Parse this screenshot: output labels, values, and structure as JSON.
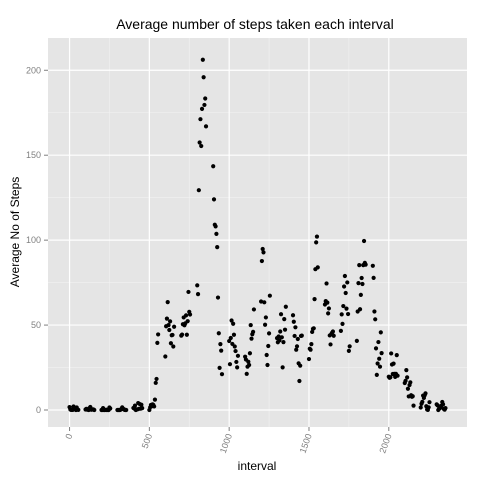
{
  "chart_data": {
    "type": "scatter",
    "title": "Average number of steps taken each interval",
    "xlabel": "interval",
    "ylabel": "Average No of Steps",
    "xlim": [
      -135,
      2490
    ],
    "ylim": [
      -10,
      219
    ],
    "xticks": [
      0,
      500,
      1000,
      1500,
      2000
    ],
    "yticks": [
      0,
      50,
      100,
      150,
      200
    ],
    "grid": true,
    "colors": {
      "panel": "#e5e5e5",
      "grid_major": "#ffffff",
      "grid_minor": "#f2f2f2",
      "point": "#000000",
      "tick_text": "#7f7f7f"
    },
    "series": [
      {
        "points": [
          [
            0,
            1.7
          ],
          [
            5,
            0.3
          ],
          [
            10,
            0.1
          ],
          [
            15,
            0.2
          ],
          [
            20,
            0.1
          ],
          [
            25,
            2.1
          ],
          [
            30,
            0.5
          ],
          [
            35,
            0.9
          ],
          [
            40,
            0
          ],
          [
            45,
            1.5
          ],
          [
            50,
            0.3
          ],
          [
            55,
            0.1
          ],
          [
            100,
            0.3
          ],
          [
            105,
            0.7
          ],
          [
            110,
            0.2
          ],
          [
            115,
            0.3
          ],
          [
            120,
            0
          ],
          [
            125,
            1.1
          ],
          [
            130,
            1.8
          ],
          [
            135,
            0.2
          ],
          [
            140,
            0.2
          ],
          [
            145,
            0.4
          ],
          [
            150,
            0.3
          ],
          [
            155,
            0
          ],
          [
            200,
            0
          ],
          [
            205,
            0
          ],
          [
            210,
            1.1
          ],
          [
            215,
            0
          ],
          [
            220,
            0
          ],
          [
            225,
            0.1
          ],
          [
            230,
            0
          ],
          [
            235,
            0.2
          ],
          [
            240,
            0
          ],
          [
            245,
            0
          ],
          [
            250,
            1.5
          ],
          [
            255,
            0.9
          ],
          [
            300,
            0
          ],
          [
            305,
            0
          ],
          [
            310,
            0
          ],
          [
            315,
            0
          ],
          [
            320,
            0.2
          ],
          [
            325,
            0.6
          ],
          [
            330,
            1.6
          ],
          [
            335,
            0.6
          ],
          [
            340,
            0.5
          ],
          [
            345,
            0.1
          ],
          [
            350,
            0
          ],
          [
            355,
            0
          ],
          [
            400,
            1.2
          ],
          [
            405,
            0.9
          ],
          [
            410,
            2.6
          ],
          [
            415,
            0
          ],
          [
            420,
            0.3
          ],
          [
            425,
            0.4
          ],
          [
            430,
            4.1
          ],
          [
            435,
            0.7
          ],
          [
            440,
            3.5
          ],
          [
            445,
            0.8
          ],
          [
            450,
            3.1
          ],
          [
            455,
            1.1
          ],
          [
            500,
            0
          ],
          [
            505,
            1.6
          ],
          [
            510,
            3
          ],
          [
            515,
            2.2
          ],
          [
            520,
            3.3
          ],
          [
            525,
            3
          ],
          [
            530,
            2.1
          ],
          [
            535,
            6.1
          ],
          [
            540,
            16
          ],
          [
            545,
            18.3
          ],
          [
            550,
            39.5
          ],
          [
            555,
            44.5
          ],
          [
            600,
            31.5
          ],
          [
            605,
            49.3
          ],
          [
            610,
            53.8
          ],
          [
            615,
            63.5
          ],
          [
            620,
            50
          ],
          [
            625,
            47.1
          ],
          [
            630,
            52.2
          ],
          [
            635,
            39.3
          ],
          [
            640,
            44
          ],
          [
            645,
            44.2
          ],
          [
            650,
            37.4
          ],
          [
            655,
            49
          ],
          [
            700,
            43.8
          ],
          [
            705,
            44.4
          ],
          [
            710,
            50.5
          ],
          [
            715,
            54.5
          ],
          [
            720,
            49.9
          ],
          [
            725,
            51
          ],
          [
            730,
            55.7
          ],
          [
            735,
            44.3
          ],
          [
            740,
            52.3
          ],
          [
            745,
            69.5
          ],
          [
            750,
            57.8
          ],
          [
            755,
            56.2
          ],
          [
            800,
            73.4
          ],
          [
            805,
            68.2
          ],
          [
            810,
            129.4
          ],
          [
            815,
            157.5
          ],
          [
            820,
            171.2
          ],
          [
            825,
            155.4
          ],
          [
            830,
            177.3
          ],
          [
            835,
            206.2
          ],
          [
            840,
            195.9
          ],
          [
            845,
            179.6
          ],
          [
            850,
            183.4
          ],
          [
            855,
            167
          ],
          [
            900,
            143.5
          ],
          [
            905,
            124
          ],
          [
            910,
            109.1
          ],
          [
            915,
            108.1
          ],
          [
            920,
            103.7
          ],
          [
            925,
            95.9
          ],
          [
            930,
            66.2
          ],
          [
            935,
            45.2
          ],
          [
            940,
            24.8
          ],
          [
            945,
            38.8
          ],
          [
            950,
            34.98
          ],
          [
            955,
            21.1
          ],
          [
            1000,
            40.6
          ],
          [
            1005,
            26.98
          ],
          [
            1010,
            42.4
          ],
          [
            1015,
            52.7
          ],
          [
            1020,
            38.9
          ],
          [
            1025,
            50.8
          ],
          [
            1030,
            44.3
          ],
          [
            1035,
            37.4
          ],
          [
            1040,
            34.7
          ],
          [
            1045,
            28.3
          ],
          [
            1050,
            25.1
          ],
          [
            1055,
            31.9
          ],
          [
            1100,
            31.4
          ],
          [
            1105,
            29.7
          ],
          [
            1110,
            21.3
          ],
          [
            1115,
            25.5
          ],
          [
            1120,
            28.4
          ],
          [
            1125,
            26.5
          ],
          [
            1130,
            33.4
          ],
          [
            1135,
            50
          ],
          [
            1140,
            42
          ],
          [
            1145,
            44.6
          ],
          [
            1150,
            46
          ],
          [
            1155,
            59.2
          ],
          [
            1200,
            63.9
          ],
          [
            1205,
            87.7
          ],
          [
            1210,
            94.8
          ],
          [
            1215,
            92.8
          ],
          [
            1220,
            63.4
          ],
          [
            1225,
            50.2
          ],
          [
            1230,
            54.5
          ],
          [
            1235,
            32.4
          ],
          [
            1240,
            26.5
          ],
          [
            1245,
            37.7
          ],
          [
            1250,
            45.1
          ],
          [
            1255,
            67.3
          ],
          [
            1300,
            42.3
          ],
          [
            1305,
            39.9
          ],
          [
            1310,
            43.3
          ],
          [
            1315,
            40.98
          ],
          [
            1320,
            46.2
          ],
          [
            1325,
            56.4
          ],
          [
            1330,
            42.8
          ],
          [
            1335,
            25.1
          ],
          [
            1340,
            39.96
          ],
          [
            1345,
            53.5
          ],
          [
            1350,
            47.3
          ],
          [
            1355,
            60.8
          ],
          [
            1400,
            55.8
          ],
          [
            1405,
            51.96
          ],
          [
            1410,
            43.6
          ],
          [
            1415,
            48.7
          ],
          [
            1420,
            35.5
          ],
          [
            1425,
            37.5
          ],
          [
            1430,
            41.8
          ],
          [
            1435,
            27.5
          ],
          [
            1440,
            17.1
          ],
          [
            1445,
            26.1
          ],
          [
            1450,
            43.6
          ],
          [
            1455,
            43.8
          ],
          [
            1500,
            30
          ],
          [
            1505,
            36.1
          ],
          [
            1510,
            35.5
          ],
          [
            1515,
            38.8
          ],
          [
            1520,
            45.96
          ],
          [
            1525,
            47.8
          ],
          [
            1530,
            48.1
          ],
          [
            1535,
            65.3
          ],
          [
            1540,
            82.9
          ],
          [
            1545,
            98.7
          ],
          [
            1550,
            102.1
          ],
          [
            1555,
            83.96
          ],
          [
            1600,
            62.1
          ],
          [
            1605,
            64.1
          ],
          [
            1610,
            74.5
          ],
          [
            1615,
            63.2
          ],
          [
            1620,
            56.9
          ],
          [
            1625,
            59.8
          ],
          [
            1630,
            43.9
          ],
          [
            1635,
            38.6
          ],
          [
            1640,
            44.7
          ],
          [
            1645,
            45.5
          ],
          [
            1650,
            46.2
          ],
          [
            1655,
            43.7
          ],
          [
            1700,
            46.6
          ],
          [
            1705,
            56.3
          ],
          [
            1710,
            50.7
          ],
          [
            1715,
            61.2
          ],
          [
            1720,
            72.7
          ],
          [
            1725,
            78.9
          ],
          [
            1730,
            68.9
          ],
          [
            1735,
            59.7
          ],
          [
            1740,
            75.1
          ],
          [
            1745,
            56.5
          ],
          [
            1750,
            34.8
          ],
          [
            1755,
            37.5
          ],
          [
            1800,
            40.7
          ],
          [
            1805,
            58
          ],
          [
            1810,
            74.7
          ],
          [
            1815,
            85.3
          ],
          [
            1820,
            59.3
          ],
          [
            1825,
            67.8
          ],
          [
            1830,
            77.7
          ],
          [
            1835,
            74.2
          ],
          [
            1840,
            85.3
          ],
          [
            1845,
            99.5
          ],
          [
            1850,
            86.6
          ],
          [
            1855,
            85.6
          ],
          [
            1900,
            84.9
          ],
          [
            1905,
            77.8
          ],
          [
            1910,
            58
          ],
          [
            1915,
            53.4
          ],
          [
            1920,
            36.3
          ],
          [
            1925,
            20.7
          ],
          [
            1930,
            27.4
          ],
          [
            1935,
            40
          ],
          [
            1940,
            30.2
          ],
          [
            1945,
            25.5
          ],
          [
            1950,
            45.7
          ],
          [
            1955,
            33.5
          ],
          [
            2000,
            19.6
          ],
          [
            2005,
            19
          ],
          [
            2010,
            19.3
          ],
          [
            2015,
            33.3
          ],
          [
            2020,
            26.8
          ],
          [
            2025,
            21.2
          ],
          [
            2030,
            27.3
          ],
          [
            2035,
            21.3
          ],
          [
            2040,
            19.5
          ],
          [
            2045,
            21.3
          ],
          [
            2050,
            32.3
          ],
          [
            2055,
            20.2
          ],
          [
            2100,
            15.9
          ],
          [
            2105,
            17.2
          ],
          [
            2110,
            23.5
          ],
          [
            2115,
            19.2
          ],
          [
            2120,
            12.5
          ],
          [
            2125,
            8
          ],
          [
            2130,
            14.7
          ],
          [
            2135,
            16.3
          ],
          [
            2140,
            8.7
          ],
          [
            2145,
            7.8
          ],
          [
            2150,
            8.1
          ],
          [
            2155,
            2.6
          ],
          [
            2200,
            1.5
          ],
          [
            2205,
            3.7
          ],
          [
            2210,
            4.8
          ],
          [
            2215,
            8.5
          ],
          [
            2220,
            7.1
          ],
          [
            2225,
            8.7
          ],
          [
            2230,
            9.8
          ],
          [
            2235,
            2.2
          ],
          [
            2240,
            0.3
          ],
          [
            2245,
            0.1
          ],
          [
            2250,
            1.6
          ],
          [
            2255,
            4.6
          ],
          [
            2300,
            3.3
          ],
          [
            2305,
            2.8
          ],
          [
            2310,
            0
          ],
          [
            2315,
            0.8
          ],
          [
            2320,
            1
          ],
          [
            2325,
            1.6
          ],
          [
            2330,
            2.6
          ],
          [
            2335,
            4.7
          ],
          [
            2340,
            3.3
          ],
          [
            2345,
            0.6
          ],
          [
            2350,
            0.2
          ],
          [
            2355,
            1.1
          ]
        ]
      }
    ]
  }
}
